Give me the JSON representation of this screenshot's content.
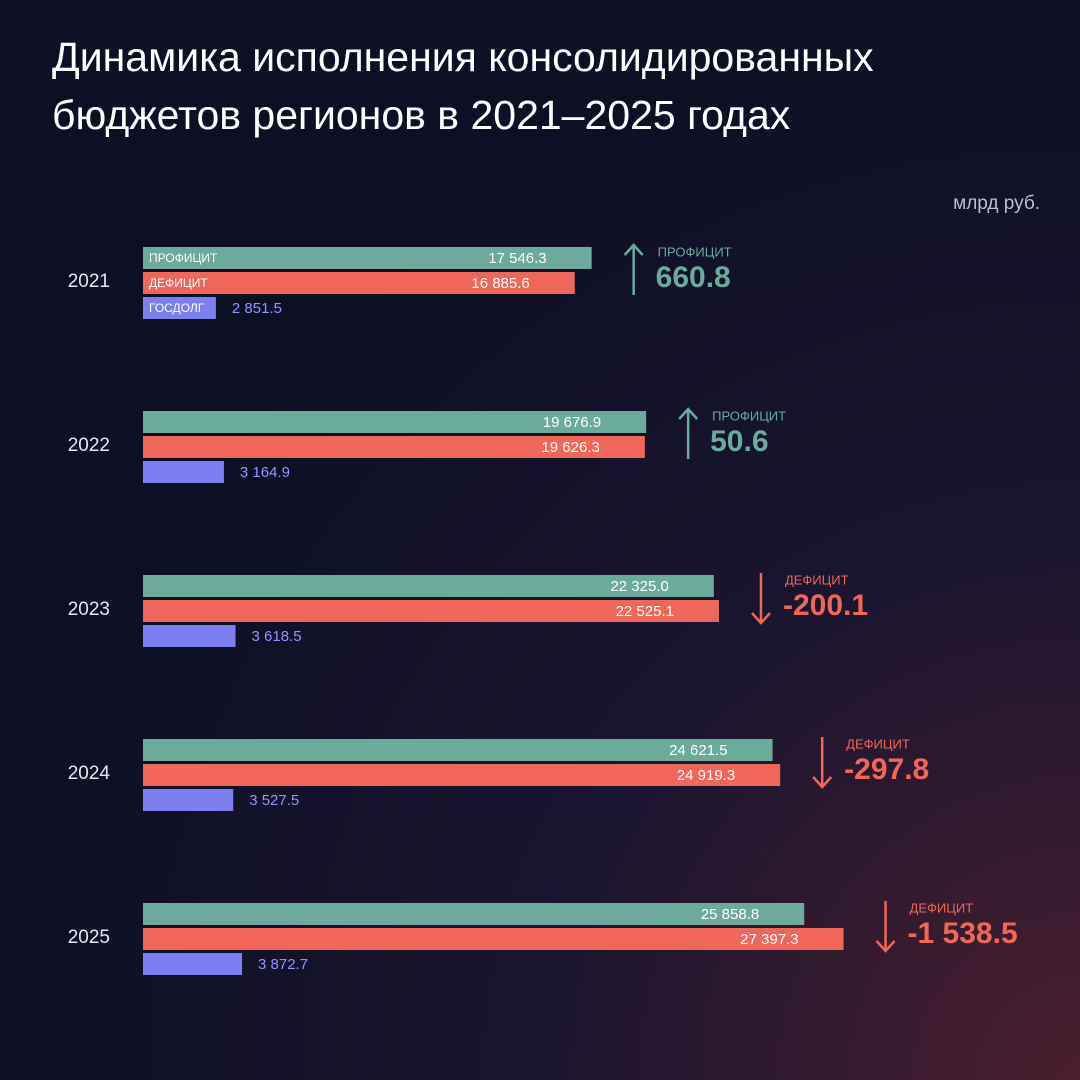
{
  "chart_data": {
    "type": "bar",
    "orientation": "horizontal",
    "title": "Динамика исполнения консолидированных бюджетов регионов в 2021–2025 годах",
    "unit": "млрд руб.",
    "categories": [
      "2021",
      "2022",
      "2023",
      "2024",
      "2025"
    ],
    "series": [
      {
        "name": "ПРОФИЦИТ",
        "color": "#6aab9c",
        "values": [
          17546.3,
          19676.9,
          22325.0,
          24621.5,
          25858.8
        ],
        "value_labels": [
          "17 546.3",
          "19 676.9",
          "22 325.0",
          "24 621.5",
          "25 858.8"
        ]
      },
      {
        "name": "ДЕФИЦИТ",
        "color": "#f0675a",
        "values": [
          16885.6,
          19626.3,
          22525.1,
          24919.3,
          27397.3
        ],
        "value_labels": [
          "16 885.6",
          "19 626.3",
          "22 525.1",
          "24 919.3",
          "27 397.3"
        ]
      },
      {
        "name": "ГОСДОЛГ",
        "color": "#7b7ff0",
        "values": [
          2851.5,
          3164.9,
          3618.5,
          3527.5,
          3872.7
        ],
        "value_labels": [
          "2 851.5",
          "3 164.9",
          "3 618.5",
          "3 527.5",
          "3 872.7"
        ]
      }
    ],
    "balance": {
      "labels": [
        "ПРОФИЦИТ",
        "ПРОФИЦИТ",
        "ДЕФИЦИТ",
        "ДЕФИЦИТ",
        "ДЕФИЦИТ"
      ],
      "values": [
        660.8,
        50.6,
        -200.1,
        -297.8,
        -1538.5
      ],
      "value_labels": [
        "660.8",
        "50.6",
        "-200.1",
        "-297.8",
        "-1 538.5"
      ]
    }
  }
}
